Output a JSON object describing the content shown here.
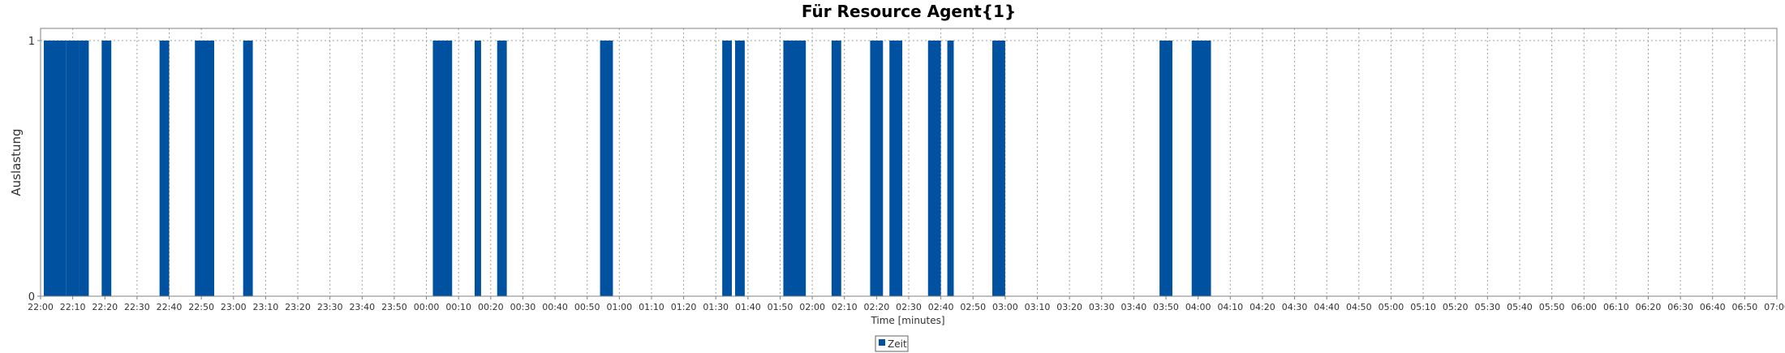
{
  "chart_data": {
    "type": "bar",
    "title": "Für Resource Agent{1}",
    "xlabel": "Time [minutes]",
    "ylabel": "Auslastung",
    "yticks": [
      "0",
      "1"
    ],
    "ylim": [
      0,
      1
    ],
    "xlim": [
      "22:00",
      "07:00"
    ],
    "x_ticks": [
      "22:00",
      "22:10",
      "22:20",
      "22:30",
      "22:40",
      "22:50",
      "23:00",
      "23:10",
      "23:20",
      "23:30",
      "23:40",
      "23:50",
      "00:00",
      "00:10",
      "00:20",
      "00:30",
      "00:40",
      "00:50",
      "01:00",
      "01:10",
      "01:20",
      "01:30",
      "01:40",
      "01:50",
      "02:00",
      "02:10",
      "02:20",
      "02:30",
      "02:40",
      "02:50",
      "03:00",
      "03:10",
      "03:20",
      "03:30",
      "03:40",
      "03:50",
      "04:00",
      "04:10",
      "04:20",
      "04:30",
      "04:40",
      "04:50",
      "05:00",
      "05:10",
      "05:20",
      "05:30",
      "05:40",
      "05:50",
      "06:00",
      "06:10",
      "06:20",
      "06:30",
      "06:40",
      "06:50",
      "07:00"
    ],
    "grid": true,
    "legend_position": "bottom-center",
    "series": [
      {
        "name": "Zeit",
        "color": "#0052A0",
        "value": 1,
        "intervals": [
          [
            "22:01",
            "22:08"
          ],
          [
            "22:08",
            "22:12"
          ],
          [
            "22:12",
            "22:15"
          ],
          [
            "22:19",
            "22:22"
          ],
          [
            "22:37",
            "22:40"
          ],
          [
            "22:48",
            "22:54"
          ],
          [
            "23:03",
            "23:06"
          ],
          [
            "00:02",
            "00:08"
          ],
          [
            "00:15",
            "00:17"
          ],
          [
            "00:22",
            "00:25"
          ],
          [
            "00:54",
            "00:58"
          ],
          [
            "01:32",
            "01:35"
          ],
          [
            "01:36",
            "01:39"
          ],
          [
            "01:51",
            "01:58"
          ],
          [
            "02:06",
            "02:09"
          ],
          [
            "02:18",
            "02:22"
          ],
          [
            "02:24",
            "02:28"
          ],
          [
            "02:36",
            "02:40"
          ],
          [
            "02:42",
            "02:44"
          ],
          [
            "02:56",
            "03:00"
          ],
          [
            "03:48",
            "03:52"
          ],
          [
            "03:58",
            "04:04"
          ]
        ]
      }
    ]
  }
}
